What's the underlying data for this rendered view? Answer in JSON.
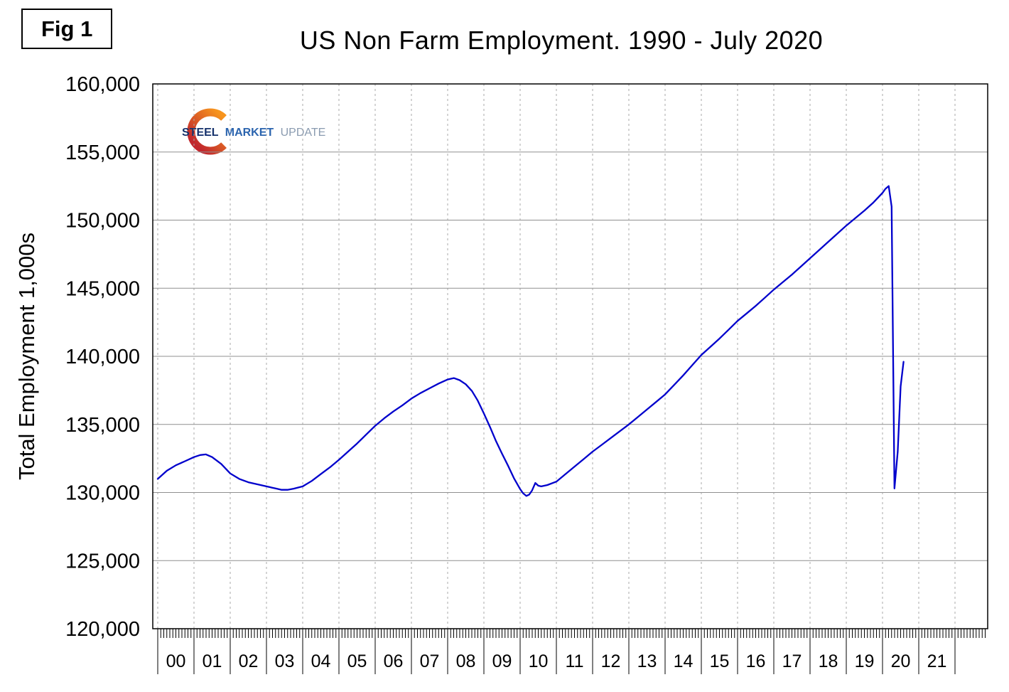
{
  "figure_label": "Fig 1",
  "title": "US Non Farm Employment. 1990 - July 2020",
  "logo": {
    "steel": "STEEL",
    "market": "MARKET",
    "update": "UPDATE",
    "steel_color": "#15316B",
    "market_color": "#2B64AE",
    "update_color": "#8A9BB0",
    "swoosh_orange": "#F7941D",
    "swoosh_red": "#C1272D"
  },
  "chart_data": {
    "type": "line",
    "title": "US Non Farm Employment. 1990 - July 2020",
    "xlabel": "",
    "ylabel": "Total Employment 1,000s",
    "ylim": [
      120000,
      160000
    ],
    "y_tick_interval": 5000,
    "y_ticks": [
      {
        "v": 120000,
        "label": "120,000"
      },
      {
        "v": 125000,
        "label": "125,000"
      },
      {
        "v": 130000,
        "label": "130,000"
      },
      {
        "v": 135000,
        "label": "135,000"
      },
      {
        "v": 140000,
        "label": "140,000"
      },
      {
        "v": 145000,
        "label": "145,000"
      },
      {
        "v": 150000,
        "label": "150,000"
      },
      {
        "v": 155000,
        "label": "155,000"
      },
      {
        "v": 160000,
        "label": "160,000"
      }
    ],
    "x_axis": {
      "origin_year": 2000,
      "minor_ticks": "monthly",
      "major_ticks": "yearly"
    },
    "x_tick_labels": [
      "00",
      "01",
      "02",
      "03",
      "04",
      "05",
      "06",
      "07",
      "08",
      "09",
      "10",
      "11",
      "12",
      "13",
      "14",
      "15",
      "16",
      "17",
      "18",
      "19",
      "20",
      "21"
    ],
    "grid": {
      "horizontal_style": "solid",
      "horizontal_color": "#8f8f8f",
      "vertical_style": "dashed",
      "vertical_color": "#aaaaaa"
    },
    "legend": "none",
    "series": [
      {
        "name": "US Non Farm Employment (1,000s)",
        "color": "#0000CC",
        "points": [
          [
            2000.0,
            131000
          ],
          [
            2000.25,
            131600
          ],
          [
            2000.5,
            132000
          ],
          [
            2000.75,
            132300
          ],
          [
            2001.0,
            132600
          ],
          [
            2001.17,
            132750
          ],
          [
            2001.33,
            132800
          ],
          [
            2001.5,
            132600
          ],
          [
            2001.75,
            132100
          ],
          [
            2002.0,
            131400
          ],
          [
            2002.25,
            131000
          ],
          [
            2002.5,
            130750
          ],
          [
            2002.75,
            130600
          ],
          [
            2003.0,
            130450
          ],
          [
            2003.25,
            130300
          ],
          [
            2003.42,
            130200
          ],
          [
            2003.58,
            130200
          ],
          [
            2003.75,
            130280
          ],
          [
            2004.0,
            130450
          ],
          [
            2004.25,
            130850
          ],
          [
            2004.5,
            131350
          ],
          [
            2004.75,
            131850
          ],
          [
            2005.0,
            132400
          ],
          [
            2005.25,
            133000
          ],
          [
            2005.5,
            133600
          ],
          [
            2005.75,
            134250
          ],
          [
            2006.0,
            134900
          ],
          [
            2006.25,
            135450
          ],
          [
            2006.5,
            135950
          ],
          [
            2006.75,
            136400
          ],
          [
            2007.0,
            136900
          ],
          [
            2007.25,
            137300
          ],
          [
            2007.5,
            137650
          ],
          [
            2007.75,
            138000
          ],
          [
            2008.0,
            138300
          ],
          [
            2008.17,
            138400
          ],
          [
            2008.33,
            138250
          ],
          [
            2008.5,
            137950
          ],
          [
            2008.67,
            137450
          ],
          [
            2008.83,
            136750
          ],
          [
            2009.0,
            135800
          ],
          [
            2009.17,
            134800
          ],
          [
            2009.33,
            133800
          ],
          [
            2009.5,
            132850
          ],
          [
            2009.67,
            131950
          ],
          [
            2009.83,
            131050
          ],
          [
            2010.0,
            130250
          ],
          [
            2010.08,
            129950
          ],
          [
            2010.17,
            129750
          ],
          [
            2010.25,
            129850
          ],
          [
            2010.33,
            130150
          ],
          [
            2010.42,
            130700
          ],
          [
            2010.5,
            130500
          ],
          [
            2010.58,
            130450
          ],
          [
            2010.75,
            130550
          ],
          [
            2011.0,
            130800
          ],
          [
            2011.25,
            131350
          ],
          [
            2011.5,
            131900
          ],
          [
            2011.75,
            132450
          ],
          [
            2012.0,
            133000
          ],
          [
            2012.25,
            133500
          ],
          [
            2012.5,
            134000
          ],
          [
            2012.75,
            134500
          ],
          [
            2013.0,
            135000
          ],
          [
            2013.25,
            135550
          ],
          [
            2013.5,
            136100
          ],
          [
            2013.75,
            136650
          ],
          [
            2014.0,
            137200
          ],
          [
            2014.25,
            137900
          ],
          [
            2014.5,
            138600
          ],
          [
            2014.75,
            139350
          ],
          [
            2015.0,
            140100
          ],
          [
            2015.25,
            140700
          ],
          [
            2015.5,
            141300
          ],
          [
            2015.75,
            141950
          ],
          [
            2016.0,
            142600
          ],
          [
            2016.25,
            143150
          ],
          [
            2016.5,
            143700
          ],
          [
            2016.75,
            144300
          ],
          [
            2017.0,
            144900
          ],
          [
            2017.25,
            145450
          ],
          [
            2017.5,
            146000
          ],
          [
            2017.75,
            146600
          ],
          [
            2018.0,
            147200
          ],
          [
            2018.25,
            147800
          ],
          [
            2018.5,
            148400
          ],
          [
            2018.75,
            149000
          ],
          [
            2019.0,
            149600
          ],
          [
            2019.25,
            150150
          ],
          [
            2019.5,
            150700
          ],
          [
            2019.75,
            151300
          ],
          [
            2020.0,
            152000
          ],
          [
            2020.08,
            152300
          ],
          [
            2020.17,
            152500
          ],
          [
            2020.25,
            151000
          ],
          [
            2020.33,
            130300
          ],
          [
            2020.42,
            133000
          ],
          [
            2020.5,
            137800
          ],
          [
            2020.58,
            139600
          ]
        ]
      }
    ]
  }
}
